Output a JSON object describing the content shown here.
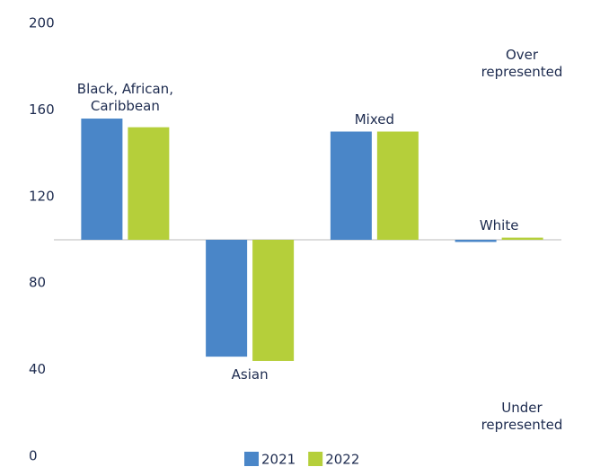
{
  "chart_data": {
    "type": "bar",
    "categories": [
      "Black, African, Caribbean",
      "Asian",
      "Mixed",
      "White"
    ],
    "baseline": 100,
    "series": [
      {
        "name": "2021",
        "color": "#4a86c8",
        "values": [
          156,
          46,
          150,
          99
        ]
      },
      {
        "name": "2022",
        "color": "#b5cf3a",
        "values": [
          152,
          44,
          150,
          101
        ]
      }
    ],
    "ylim": [
      0,
      200
    ],
    "yticks": [
      0,
      40,
      80,
      120,
      160,
      200
    ],
    "annotations": [
      "Over represented",
      "Under represented"
    ],
    "legend": "bottom"
  }
}
